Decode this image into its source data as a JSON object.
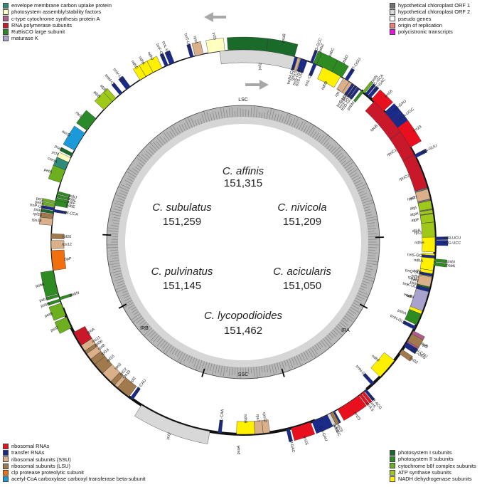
{
  "species": [
    {
      "name": "C. affinis",
      "size": "151,315"
    },
    {
      "name": "C. subulatus",
      "size": "151,259"
    },
    {
      "name": "C. nivicola",
      "size": "151,209"
    },
    {
      "name": "C. pulvinatus",
      "size": "151,145"
    },
    {
      "name": "C. acicularis",
      "size": "151,050"
    },
    {
      "name": "C. lycopodioides",
      "size": "151,462"
    }
  ],
  "regions": {
    "lsc": "LSC",
    "ssc": "SSC",
    "ira": "IRA",
    "irb": "IRB"
  },
  "colors": {
    "envelope": "#2e8b7a",
    "photosystem_assembly": "#ffffc0",
    "cytochrome_c": "#b05c8c",
    "rna_polymerase": "#c8182a",
    "rubisco": "#2a8a2a",
    "maturase": "#a9a2cc",
    "ribosomal_rna": "#e8101e",
    "transfer_rna": "#1a2a8a",
    "ssu": "#d9b08a",
    "lsu": "#a07a4c",
    "clp": "#f07010",
    "acc": "#1a9ad8",
    "hyp1": "#707070",
    "hyp2": "#d8d8d8",
    "pseudo": "#ffffff",
    "origin": "#f07878",
    "polycistronic": "#f010e8",
    "ps1": "#1a6a2a",
    "ps2": "#2e8b22",
    "cytb6f": "#6cb020",
    "atp": "#a0c81a",
    "ndh": "#fff000"
  },
  "legend_top_left": [
    {
      "label": "envelope membrane carbon uptake protein",
      "color": "#2e8b7a"
    },
    {
      "label": "photosystem assembly/stability factors",
      "color": "#ffffc0"
    },
    {
      "label": "c-type cytochrome synthesis protein A",
      "color": "#b05c8c"
    },
    {
      "label": "RNA polymerase subunits",
      "color": "#c8182a"
    },
    {
      "label": "RuBisCO large subunit",
      "color": "#2a8a2a"
    },
    {
      "label": "maturase K",
      "color": "#a9a2cc"
    }
  ],
  "legend_top_right": [
    {
      "label": "hypothetical chloroplast ORF 1",
      "color": "#707070"
    },
    {
      "label": "hypothetical chloroplast ORF 2",
      "color": "#d8d8d8"
    },
    {
      "label": "pseudo genes",
      "color": "#ffffff"
    },
    {
      "label": "origin of replication",
      "color": "#f07878"
    },
    {
      "label": "polycistronic transcripts",
      "color": "#f010e8"
    }
  ],
  "legend_bottom_left": [
    {
      "label": "ribosomal RNAs",
      "color": "#e8101e"
    },
    {
      "label": "transfer RNAs",
      "color": "#1a2a8a"
    },
    {
      "label": "ribosomal subunits (SSU)",
      "color": "#d9b08a"
    },
    {
      "label": "ribosomal subunits (LSU)",
      "color": "#a07a4c"
    },
    {
      "label": "clp protease proteolytic subunit",
      "color": "#f07010"
    },
    {
      "label": "acetyl-CoA carboxylase carboxyl transferase beta-subunit",
      "color": "#1a9ad8"
    }
  ],
  "legend_bottom_right": [
    {
      "label": "photosystem I subunits",
      "color": "#1a6a2a"
    },
    {
      "label": "photosystem II subunits",
      "color": "#2e8b22"
    },
    {
      "label": "cytochrome b6f complex subunits",
      "color": "#6cb020"
    },
    {
      "label": "ATP synthase subunits",
      "color": "#a0c81a"
    },
    {
      "label": "NADH dehydrogenase subunits",
      "color": "#fff000"
    }
  ],
  "genes": [
    {
      "name": "psaA",
      "start": 355.5,
      "end": 7.0,
      "side": "out",
      "cat": "ps1"
    },
    {
      "name": "psaB",
      "start": 7.0,
      "end": 15.5,
      "side": "out",
      "cat": "ps1"
    },
    {
      "name": "ycf3",
      "start": 349.5,
      "end": 354.5,
      "side": "out",
      "cat": "photosystem_assembly"
    },
    {
      "name": "rps4",
      "start": 345.5,
      "end": 348.0,
      "side": "out",
      "cat": "ssu"
    },
    {
      "name": "trnT-UGU",
      "start": 344.0,
      "end": 345.0,
      "side": "out",
      "cat": "transfer_rna"
    },
    {
      "name": "trnL-UAA",
      "start": 337.5,
      "end": 339.0,
      "side": "out",
      "cat": "transfer_rna"
    },
    {
      "name": "trnF-GAA",
      "start": 336.0,
      "end": 337.0,
      "side": "out",
      "cat": "transfer_rna"
    },
    {
      "name": "ndhJ",
      "start": 332.0,
      "end": 335.0,
      "side": "out",
      "cat": "ndh"
    },
    {
      "name": "ndhK",
      "start": 329.5,
      "end": 332.0,
      "side": "out",
      "cat": "ndh"
    },
    {
      "name": "ndhC",
      "start": 327.5,
      "end": 329.5,
      "side": "out",
      "cat": "ndh"
    },
    {
      "name": "trnV-UAC",
      "start": 322.5,
      "end": 324.0,
      "side": "out",
      "cat": "transfer_rna"
    },
    {
      "name": "trnM-CAU",
      "start": 320.0,
      "end": 321.0,
      "side": "out",
      "cat": "transfer_rna"
    },
    {
      "name": "atpE",
      "start": 317.0,
      "end": 318.5,
      "side": "out",
      "cat": "atp"
    },
    {
      "name": "atpB",
      "start": 313.5,
      "end": 317.0,
      "side": "out",
      "cat": "atp"
    },
    {
      "name": "rbcL",
      "start": 305.5,
      "end": 310.0,
      "side": "out",
      "cat": "rubisco"
    },
    {
      "name": "accD",
      "start": 298.5,
      "end": 304.5,
      "side": "out",
      "cat": "acc"
    },
    {
      "name": "psaI",
      "start": 296.5,
      "end": 297.5,
      "side": "out",
      "cat": "ps1"
    },
    {
      "name": "ycf4",
      "start": 294.5,
      "end": 296.0,
      "side": "out",
      "cat": "photosystem_assembly"
    },
    {
      "name": "cemA",
      "start": 292.0,
      "end": 294.5,
      "side": "out",
      "cat": "envelope"
    },
    {
      "name": "petA",
      "start": 288.0,
      "end": 292.0,
      "side": "out",
      "cat": "cytb6f"
    },
    {
      "name": "psbJ",
      "start": 284.5,
      "end": 285.3,
      "side": "in",
      "cat": "ps2"
    },
    {
      "name": "psbL",
      "start": 283.5,
      "end": 284.3,
      "side": "in",
      "cat": "ps2"
    },
    {
      "name": "psbF",
      "start": 282.5,
      "end": 283.3,
      "side": "in",
      "cat": "ps2"
    },
    {
      "name": "psbE",
      "start": 281.0,
      "end": 282.5,
      "side": "in",
      "cat": "ps2"
    },
    {
      "name": "trnW-CCA",
      "start": 279.0,
      "end": 279.8,
      "side": "in",
      "cat": "transfer_rna"
    },
    {
      "name": "petL",
      "start": 281.5,
      "end": 282.3,
      "side": "out",
      "cat": "cytb6f"
    },
    {
      "name": "petG",
      "start": 280.5,
      "end": 281.3,
      "side": "out",
      "cat": "cytb6f"
    },
    {
      "name": "trnP-UGG",
      "start": 279.5,
      "end": 280.3,
      "side": "out",
      "cat": "transfer_rna"
    },
    {
      "name": "psaJ",
      "start": 278.5,
      "end": 279.3,
      "side": "out",
      "cat": "ps1"
    },
    {
      "name": "rpl33",
      "start": 277.0,
      "end": 278.3,
      "side": "out",
      "cat": "lsu"
    },
    {
      "name": "rps18",
      "start": 275.0,
      "end": 277.0,
      "side": "out",
      "cat": "ssu"
    },
    {
      "name": "rpl20",
      "start": 271.0,
      "end": 272.5,
      "side": "in",
      "cat": "lsu"
    },
    {
      "name": "rps12",
      "start": 268.0,
      "end": 270.5,
      "side": "in",
      "cat": "ssu"
    },
    {
      "name": "clpP",
      "start": 261.5,
      "end": 267.5,
      "side": "in",
      "cat": "clp"
    },
    {
      "name": "psbB",
      "start": 254.5,
      "end": 261.5,
      "side": "out",
      "cat": "ps2"
    },
    {
      "name": "psbT",
      "start": 253.5,
      "end": 254.3,
      "side": "out",
      "cat": "ps2"
    },
    {
      "name": "psbN",
      "start": 252.5,
      "end": 253.3,
      "side": "in",
      "cat": "ps2"
    },
    {
      "name": "psbH",
      "start": 252.0,
      "end": 252.8,
      "side": "out",
      "cat": "ps2"
    },
    {
      "name": "petB",
      "start": 247.5,
      "end": 251.5,
      "side": "out",
      "cat": "cytb6f"
    },
    {
      "name": "petD",
      "start": 243.5,
      "end": 247.0,
      "side": "out",
      "cat": "cytb6f"
    },
    {
      "name": "rpoA",
      "start": 237.5,
      "end": 242.0,
      "side": "in",
      "cat": "rna_polymerase"
    },
    {
      "name": "rps11",
      "start": 235.5,
      "end": 237.5,
      "side": "in",
      "cat": "ssu"
    },
    {
      "name": "rpl36",
      "start": 234.5,
      "end": 235.5,
      "side": "in",
      "cat": "lsu"
    },
    {
      "name": "rps8",
      "start": 232.5,
      "end": 234.5,
      "side": "in",
      "cat": "ssu"
    },
    {
      "name": "rpl14",
      "start": 230.5,
      "end": 232.5,
      "side": "in",
      "cat": "lsu"
    },
    {
      "name": "rpl16",
      "start": 227.0,
      "end": 230.5,
      "side": "in",
      "cat": "lsu"
    },
    {
      "name": "rps3",
      "start": 223.5,
      "end": 227.0,
      "side": "in",
      "cat": "ssu"
    },
    {
      "name": "rpl22",
      "start": 222.0,
      "end": 223.5,
      "side": "in",
      "cat": "lsu"
    },
    {
      "name": "rps19",
      "start": 220.8,
      "end": 222.0,
      "side": "in",
      "cat": "ssu"
    },
    {
      "name": "rpl2",
      "start": 216.5,
      "end": 220.8,
      "side": "in",
      "cat": "lsu"
    },
    {
      "name": "trnI-CAU",
      "start": 215.0,
      "end": 216.0,
      "side": "in",
      "cat": "transfer_rna"
    },
    {
      "name": "ycf2",
      "start": 190.0,
      "end": 212.0,
      "side": "out",
      "cat": "hyp2"
    },
    {
      "name": "trnL-CAA",
      "start": 186.5,
      "end": 187.5,
      "side": "in",
      "cat": "transfer_rna"
    },
    {
      "name": "ndhB",
      "start": 176.5,
      "end": 182.0,
      "side": "in",
      "cat": "ndh"
    },
    {
      "name": "rps7",
      "start": 174.0,
      "end": 176.5,
      "side": "in",
      "cat": "ssu"
    },
    {
      "name": "rps12",
      "start": 172.0,
      "end": 174.0,
      "side": "in",
      "cat": "ssu"
    },
    {
      "name": "trnV-GAC",
      "start": 166.0,
      "end": 167.0,
      "side": "out",
      "cat": "transfer_rna"
    },
    {
      "name": "rrn16",
      "start": 159.5,
      "end": 165.5,
      "side": "out",
      "cat": "ribosomal_rna"
    },
    {
      "name": "trnI-GAU",
      "start": 155.5,
      "end": 159.0,
      "side": "out",
      "cat": "transfer_rna"
    },
    {
      "name": "trnA-UGC",
      "start": 151.5,
      "end": 155.5,
      "side": "out",
      "cat": "transfer_rna"
    },
    {
      "name": "ycf68",
      "start": 153.0,
      "end": 154.0,
      "side": "out",
      "cat": "hyp2"
    },
    {
      "name": "rrn23",
      "start": 143.0,
      "end": 150.5,
      "side": "out",
      "cat": "ribosomal_rna"
    },
    {
      "name": "rrn4.5",
      "start": 142.0,
      "end": 142.8,
      "side": "out",
      "cat": "ribosomal_rna"
    },
    {
      "name": "rrn5",
      "start": 141.0,
      "end": 141.8,
      "side": "out",
      "cat": "ribosomal_rna"
    },
    {
      "name": "trnR-ACG",
      "start": 140.0,
      "end": 140.8,
      "side": "out",
      "cat": "transfer_rna"
    },
    {
      "name": "trnN-GUU",
      "start": 137.0,
      "end": 138.0,
      "side": "in",
      "cat": "transfer_rna"
    },
    {
      "name": "ndhF",
      "start": 128.0,
      "end": 134.5,
      "side": "in",
      "cat": "ndh"
    },
    {
      "name": "rpl32",
      "start": 124.0,
      "end": 125.5,
      "side": "out",
      "cat": "lsu"
    },
    {
      "name": "trnL-UAG",
      "start": 122.0,
      "end": 123.0,
      "side": "out",
      "cat": "transfer_rna"
    },
    {
      "name": "ccsA",
      "start": 117.5,
      "end": 121.5,
      "side": "out",
      "cat": "cytochrome_c"
    },
    {
      "name": "ndhD",
      "start": 104.0,
      "end": 112.0,
      "side": "in",
      "cat": "ndh"
    },
    {
      "name": "psaC",
      "start": 103.0,
      "end": 104.0,
      "side": "in",
      "cat": "ps1"
    },
    {
      "name": "ndhE",
      "start": 102.0,
      "end": 103.0,
      "side": "in",
      "cat": "ndh"
    },
    {
      "name": "ndhG",
      "start": 100.5,
      "end": 102.0,
      "side": "in",
      "cat": "ndh"
    },
    {
      "name": "ndhI",
      "start": 98.5,
      "end": 100.5,
      "side": "in",
      "cat": "ndh"
    },
    {
      "name": "ndhA",
      "start": 93.5,
      "end": 98.5,
      "side": "in",
      "cat": "ndh"
    },
    {
      "name": "ndhH",
      "start": 87.5,
      "end": 93.0,
      "side": "in",
      "cat": "ndh"
    },
    {
      "name": "rps15",
      "start": 86.5,
      "end": 87.5,
      "side": "in",
      "cat": "ssu"
    },
    {
      "name": "ycf1",
      "start": 67.0,
      "end": 84.0,
      "side": "in",
      "cat": "hyp1"
    },
    {
      "name": "trnN-GUU",
      "start": 63.0,
      "end": 64.0,
      "side": "out",
      "cat": "transfer_rna"
    },
    {
      "name": "rrn23",
      "start": 53.5,
      "end": 60.5,
      "side": "out",
      "cat": "ribosomal_rna"
    },
    {
      "name": "trnA-UGC",
      "start": 50.5,
      "end": 53.5,
      "side": "out",
      "cat": "transfer_rna"
    },
    {
      "name": "trnI-GAU",
      "start": 47.5,
      "end": 50.5,
      "side": "out",
      "cat": "transfer_rna"
    },
    {
      "name": "rrn16",
      "start": 42.0,
      "end": 47.0,
      "side": "out",
      "cat": "ribosomal_rna"
    },
    {
      "name": "trnV-GAC",
      "start": 40.5,
      "end": 41.5,
      "side": "out",
      "cat": "transfer_rna"
    },
    {
      "name": "rps12",
      "start": 33.5,
      "end": 36.5,
      "side": "in",
      "cat": "ssu"
    },
    {
      "name": "rps7",
      "start": 31.5,
      "end": 33.5,
      "side": "in",
      "cat": "ssu"
    },
    {
      "name": "ndhB",
      "start": 24.5,
      "end": 30.5,
      "side": "in",
      "cat": "ndh"
    },
    {
      "name": "trnL-CAA",
      "start": 21.5,
      "end": 22.5,
      "side": "in",
      "cat": "transfer_rna"
    },
    {
      "name": "ycf2",
      "start": -7.0,
      "end": 18.0,
      "side": "in",
      "cat": "hyp2"
    }
  ],
  "gene_label_list": [
    "psbA",
    "trnK-UUU",
    "matK",
    "rps16",
    "trnQ-UUG",
    "psbK",
    "psbI",
    "trnS-GCU",
    "trnG-UCC",
    "trnR-UCU",
    "atpA",
    "atpF",
    "atpH",
    "atpI",
    "rps2",
    "rpoC2",
    "rpoC1",
    "rpoB",
    "trnC-GCA",
    "petN",
    "psbM",
    "trnD-GUC",
    "trnY-GUA",
    "trnE-UUC",
    "trnT-GGU",
    "psbD",
    "psbC",
    "psbZ",
    "trnG-GCC",
    "trnS-UGA",
    "trnfM-CAU",
    "rps14",
    "trnS-GGA",
    "trnH-GUG",
    "trnI-CAU",
    "rpl2",
    "rpl23"
  ]
}
